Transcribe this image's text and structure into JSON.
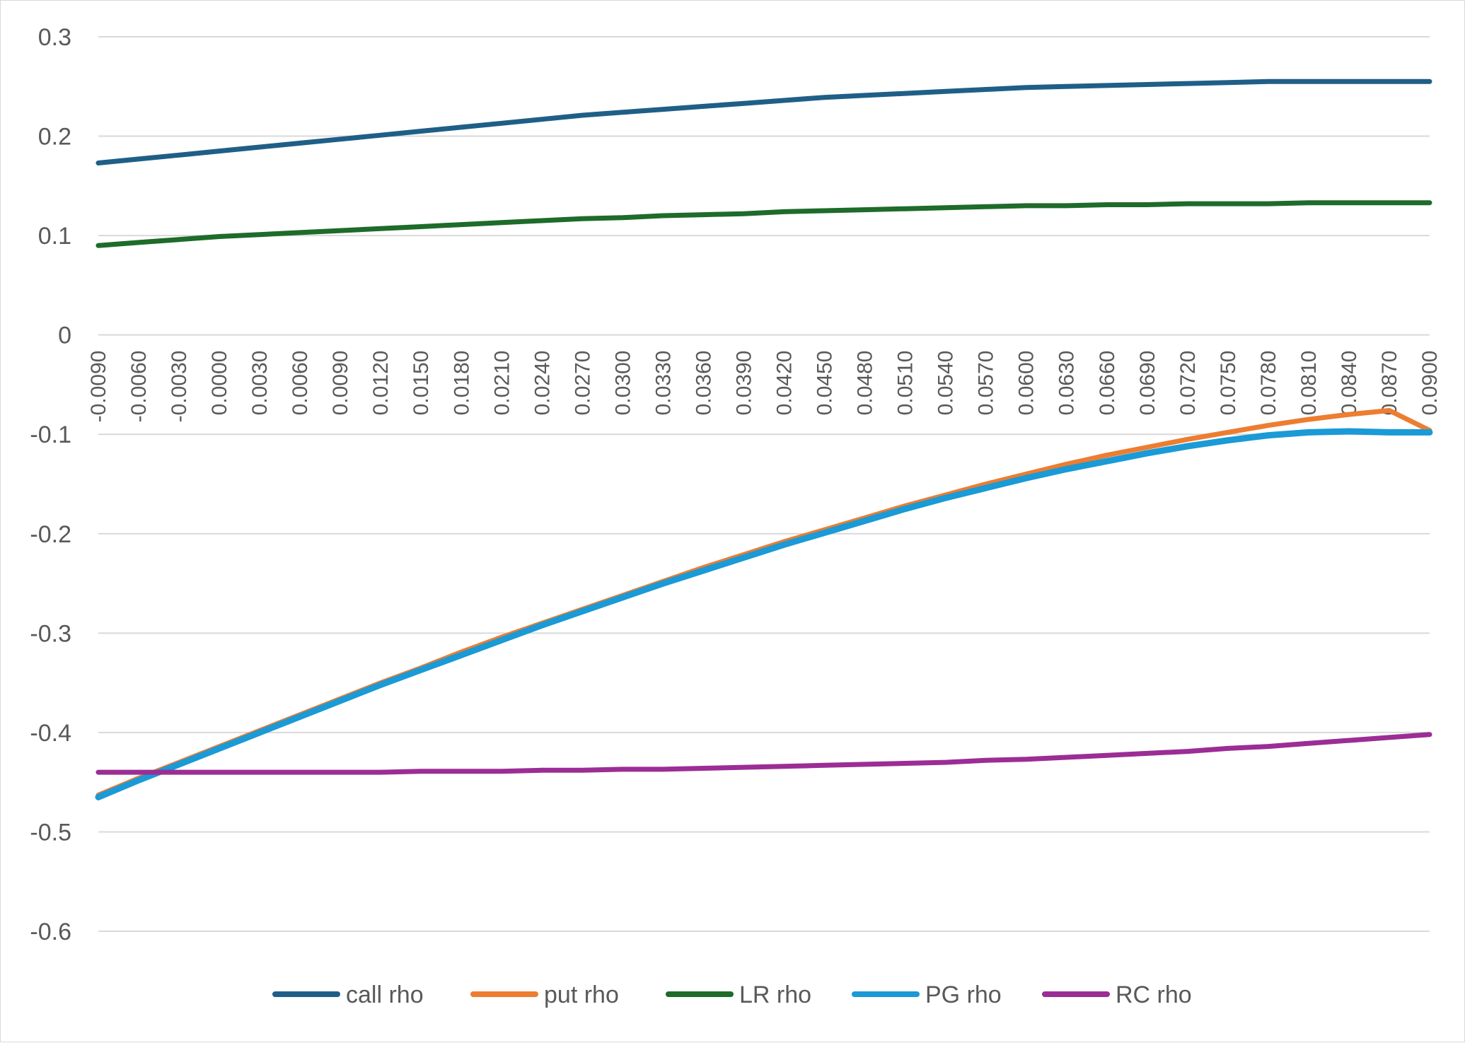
{
  "chart_data": {
    "type": "line",
    "title": "",
    "xlabel": "",
    "ylabel": "",
    "ylim": [
      -0.6,
      0.3
    ],
    "yticks": [
      "0.3",
      "0.2",
      "0.1",
      "0",
      "-0.1",
      "-0.2",
      "-0.3",
      "-0.4",
      "-0.5",
      "-0.6"
    ],
    "grid": true,
    "legend_position": "bottom",
    "x_tick_labels": [
      "-0.0090",
      "-0.0060",
      "-0.0030",
      "0.0000",
      "0.0030",
      "0.0060",
      "0.0090",
      "0.0120",
      "0.0150",
      "0.0180",
      "0.0210",
      "0.0240",
      "0.0270",
      "0.0300",
      "0.0330",
      "0.0360",
      "0.0390",
      "0.0420",
      "0.0450",
      "0.0480",
      "0.0510",
      "0.0540",
      "0.0570",
      "0.0600",
      "0.0630",
      "0.0660",
      "0.0690",
      "0.0720",
      "0.0750",
      "0.0780",
      "0.0810",
      "0.0840",
      "0.0870",
      "0.0900"
    ],
    "x": [
      -0.009,
      -0.006,
      -0.003,
      0.0,
      0.003,
      0.006,
      0.009,
      0.012,
      0.015,
      0.018,
      0.021,
      0.024,
      0.027,
      0.03,
      0.033,
      0.036,
      0.039,
      0.042,
      0.045,
      0.048,
      0.051,
      0.054,
      0.057,
      0.06,
      0.063,
      0.066,
      0.069,
      0.072,
      0.075,
      0.078,
      0.081,
      0.084,
      0.087,
      0.09
    ],
    "series": [
      {
        "name": "call rho",
        "color": "#1f5f87",
        "values": [
          0.173,
          0.177,
          0.181,
          0.185,
          0.189,
          0.193,
          0.197,
          0.201,
          0.205,
          0.209,
          0.213,
          0.217,
          0.221,
          0.224,
          0.227,
          0.23,
          0.233,
          0.236,
          0.239,
          0.241,
          0.243,
          0.245,
          0.247,
          0.249,
          0.25,
          0.251,
          0.252,
          0.253,
          0.254,
          0.255,
          0.255,
          0.255,
          0.255,
          0.255
        ]
      },
      {
        "name": "put rho",
        "color": "#ed7d31",
        "values": [
          -0.463,
          -0.446,
          -0.43,
          -0.414,
          -0.398,
          -0.382,
          -0.366,
          -0.35,
          -0.335,
          -0.319,
          -0.304,
          -0.29,
          -0.276,
          -0.262,
          -0.248,
          -0.234,
          -0.221,
          -0.208,
          -0.196,
          -0.184,
          -0.172,
          -0.161,
          -0.15,
          -0.14,
          -0.13,
          -0.121,
          -0.113,
          -0.105,
          -0.098,
          -0.091,
          -0.085,
          -0.08,
          -0.076,
          -0.096
        ]
      },
      {
        "name": "LR rho",
        "color": "#1e6b2a",
        "values": [
          0.09,
          0.093,
          0.096,
          0.099,
          0.101,
          0.103,
          0.105,
          0.107,
          0.109,
          0.111,
          0.113,
          0.115,
          0.117,
          0.118,
          0.12,
          0.121,
          0.122,
          0.124,
          0.125,
          0.126,
          0.127,
          0.128,
          0.129,
          0.13,
          0.13,
          0.131,
          0.131,
          0.132,
          0.132,
          0.132,
          0.133,
          0.133,
          0.133,
          0.133
        ]
      },
      {
        "name": "PG rho",
        "color": "#1a9ad6",
        "values": [
          -0.465,
          -0.448,
          -0.432,
          -0.416,
          -0.4,
          -0.384,
          -0.368,
          -0.352,
          -0.337,
          -0.322,
          -0.307,
          -0.292,
          -0.278,
          -0.264,
          -0.25,
          -0.237,
          -0.224,
          -0.211,
          -0.199,
          -0.187,
          -0.175,
          -0.164,
          -0.154,
          -0.144,
          -0.135,
          -0.127,
          -0.119,
          -0.112,
          -0.106,
          -0.101,
          -0.098,
          -0.097,
          -0.098,
          -0.098
        ]
      },
      {
        "name": "RC rho",
        "color": "#9b2d95",
        "values": [
          -0.44,
          -0.44,
          -0.44,
          -0.44,
          -0.44,
          -0.44,
          -0.44,
          -0.44,
          -0.439,
          -0.439,
          -0.439,
          -0.438,
          -0.438,
          -0.437,
          -0.437,
          -0.436,
          -0.435,
          -0.434,
          -0.433,
          -0.432,
          -0.431,
          -0.43,
          -0.428,
          -0.427,
          -0.425,
          -0.423,
          -0.421,
          -0.419,
          -0.416,
          -0.414,
          -0.411,
          -0.408,
          -0.405,
          -0.402
        ]
      }
    ]
  }
}
